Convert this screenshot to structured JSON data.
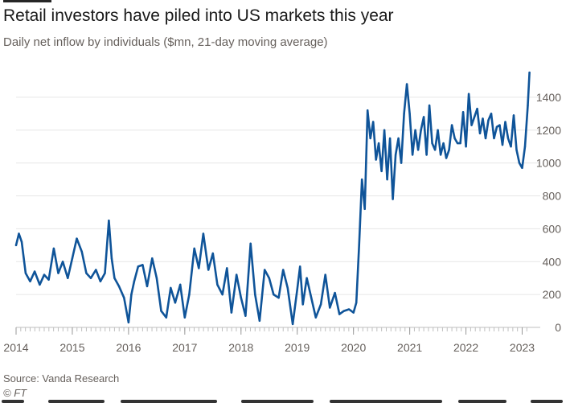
{
  "header": {
    "title": "Retail investors have piled into US markets this year",
    "subtitle": "Daily net inflow by individuals ($mn, 21-day moving average)"
  },
  "footer": {
    "source": "Source: Vanda Research",
    "credit": "© FT"
  },
  "colors": {
    "line": "#0f5499",
    "grid": "#e6e6e6",
    "axis": "#66605c",
    "text": "#262626"
  },
  "chart_data": {
    "type": "line",
    "title": "Retail investors have piled into US markets this year",
    "subtitle": "Daily net inflow by individuals ($mn, 21-day moving average)",
    "xlabel": "",
    "ylabel": "",
    "xlim": [
      2014.0,
      2023.15
    ],
    "ylim": [
      0,
      1600
    ],
    "y_ticks": [
      0,
      200,
      400,
      600,
      800,
      1000,
      1200,
      1400
    ],
    "x_ticks": [
      "2014",
      "2015",
      "2016",
      "2017",
      "2018",
      "2019",
      "2020",
      "2021",
      "2022",
      "2023"
    ],
    "grid": true,
    "legend": "none",
    "series": [
      {
        "name": "Daily net inflow by individuals",
        "x": [
          2014.0,
          2014.05,
          2014.1,
          2014.17,
          2014.25,
          2014.33,
          2014.42,
          2014.5,
          2014.58,
          2014.67,
          2014.75,
          2014.83,
          2014.92,
          2015.0,
          2015.08,
          2015.17,
          2015.25,
          2015.33,
          2015.42,
          2015.5,
          2015.58,
          2015.65,
          2015.7,
          2015.75,
          2015.83,
          2015.92,
          2016.0,
          2016.05,
          2016.1,
          2016.17,
          2016.25,
          2016.33,
          2016.42,
          2016.5,
          2016.58,
          2016.67,
          2016.75,
          2016.83,
          2016.92,
          2017.0,
          2017.08,
          2017.17,
          2017.25,
          2017.33,
          2017.42,
          2017.5,
          2017.58,
          2017.67,
          2017.75,
          2017.83,
          2017.92,
          2018.0,
          2018.08,
          2018.17,
          2018.25,
          2018.33,
          2018.42,
          2018.5,
          2018.58,
          2018.67,
          2018.75,
          2018.83,
          2018.92,
          2019.0,
          2019.05,
          2019.1,
          2019.17,
          2019.25,
          2019.33,
          2019.42,
          2019.5,
          2019.58,
          2019.67,
          2019.75,
          2019.83,
          2019.92,
          2020.0,
          2020.05,
          2020.1,
          2020.15,
          2020.2,
          2020.25,
          2020.3,
          2020.35,
          2020.4,
          2020.45,
          2020.5,
          2020.55,
          2020.6,
          2020.65,
          2020.7,
          2020.75,
          2020.8,
          2020.85,
          2020.9,
          2020.95,
          2021.0,
          2021.05,
          2021.1,
          2021.15,
          2021.2,
          2021.25,
          2021.3,
          2021.35,
          2021.4,
          2021.45,
          2021.5,
          2021.55,
          2021.6,
          2021.65,
          2021.7,
          2021.75,
          2021.8,
          2021.85,
          2021.9,
          2021.95,
          2022.0,
          2022.05,
          2022.1,
          2022.15,
          2022.2,
          2022.25,
          2022.3,
          2022.35,
          2022.4,
          2022.45,
          2022.5,
          2022.55,
          2022.6,
          2022.65,
          2022.7,
          2022.75,
          2022.8,
          2022.85,
          2022.9,
          2022.95,
          2023.0,
          2023.05,
          2023.1,
          2023.13
        ],
        "values": [
          500,
          570,
          520,
          330,
          280,
          340,
          260,
          320,
          290,
          480,
          330,
          400,
          300,
          420,
          540,
          460,
          330,
          300,
          350,
          280,
          330,
          650,
          420,
          300,
          250,
          180,
          30,
          200,
          280,
          370,
          380,
          250,
          420,
          300,
          100,
          60,
          240,
          150,
          260,
          60,
          200,
          480,
          360,
          570,
          350,
          450,
          260,
          200,
          360,
          90,
          320,
          180,
          70,
          510,
          200,
          40,
          350,
          300,
          200,
          180,
          350,
          240,
          20,
          230,
          370,
          140,
          300,
          180,
          60,
          140,
          320,
          120,
          210,
          80,
          100,
          110,
          90,
          150,
          500,
          900,
          720,
          1320,
          1150,
          1250,
          1020,
          1120,
          950,
          1200,
          900,
          1150,
          780,
          1050,
          1150,
          1000,
          1300,
          1480,
          1300,
          1050,
          1200,
          1080,
          1200,
          1280,
          1050,
          1350,
          1120,
          1080,
          1200,
          1050,
          1120,
          1030,
          1080,
          1230,
          1150,
          1120,
          1120,
          1310,
          1100,
          1420,
          1230,
          1280,
          1330,
          1180,
          1270,
          1150,
          1260,
          1300,
          1150,
          1220,
          1230,
          1110,
          1250,
          1150,
          1100,
          1290,
          1080,
          1000,
          970,
          1100,
          1350,
          1550
        ]
      }
    ]
  }
}
